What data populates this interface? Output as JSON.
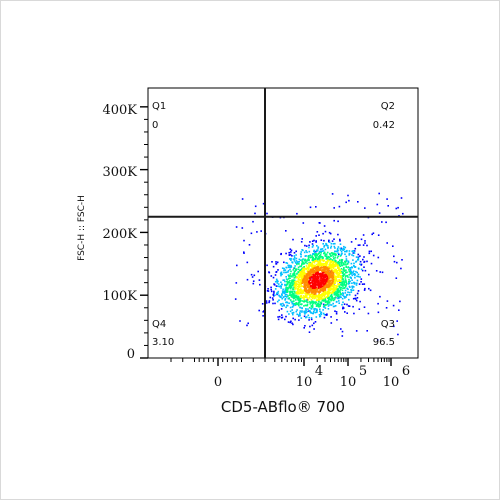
{
  "chart_data": {
    "type": "scatter",
    "title": "",
    "xlabel": "CD5-ABflo® 700",
    "ylabel": "FSC-H :: FSC-H",
    "x_scale": "biexponential",
    "x_tick_labels": [
      {
        "base": "0",
        "exp": ""
      },
      {
        "base": "10",
        "exp": "4"
      },
      {
        "base": "10",
        "exp": "5"
      },
      {
        "base": "10",
        "exp": "6"
      }
    ],
    "y_tick_labels": [
      "0",
      "100K",
      "200K",
      "300K",
      "400K"
    ],
    "ylim": [
      0,
      430000
    ],
    "gate": {
      "x_threshold": 2000,
      "y_threshold": 225000
    },
    "quadrants": [
      {
        "name": "Q1",
        "value": "0"
      },
      {
        "name": "Q2",
        "value": "0.42"
      },
      {
        "name": "Q3",
        "value": "96.5"
      },
      {
        "name": "Q4",
        "value": "3.10"
      }
    ],
    "population": {
      "center": {
        "x": 20000,
        "y": 125000
      },
      "color_scale": [
        "#0000ff",
        "#00bfff",
        "#00ff7f",
        "#ffff00",
        "#ff8c00",
        "#ff0000"
      ]
    }
  }
}
